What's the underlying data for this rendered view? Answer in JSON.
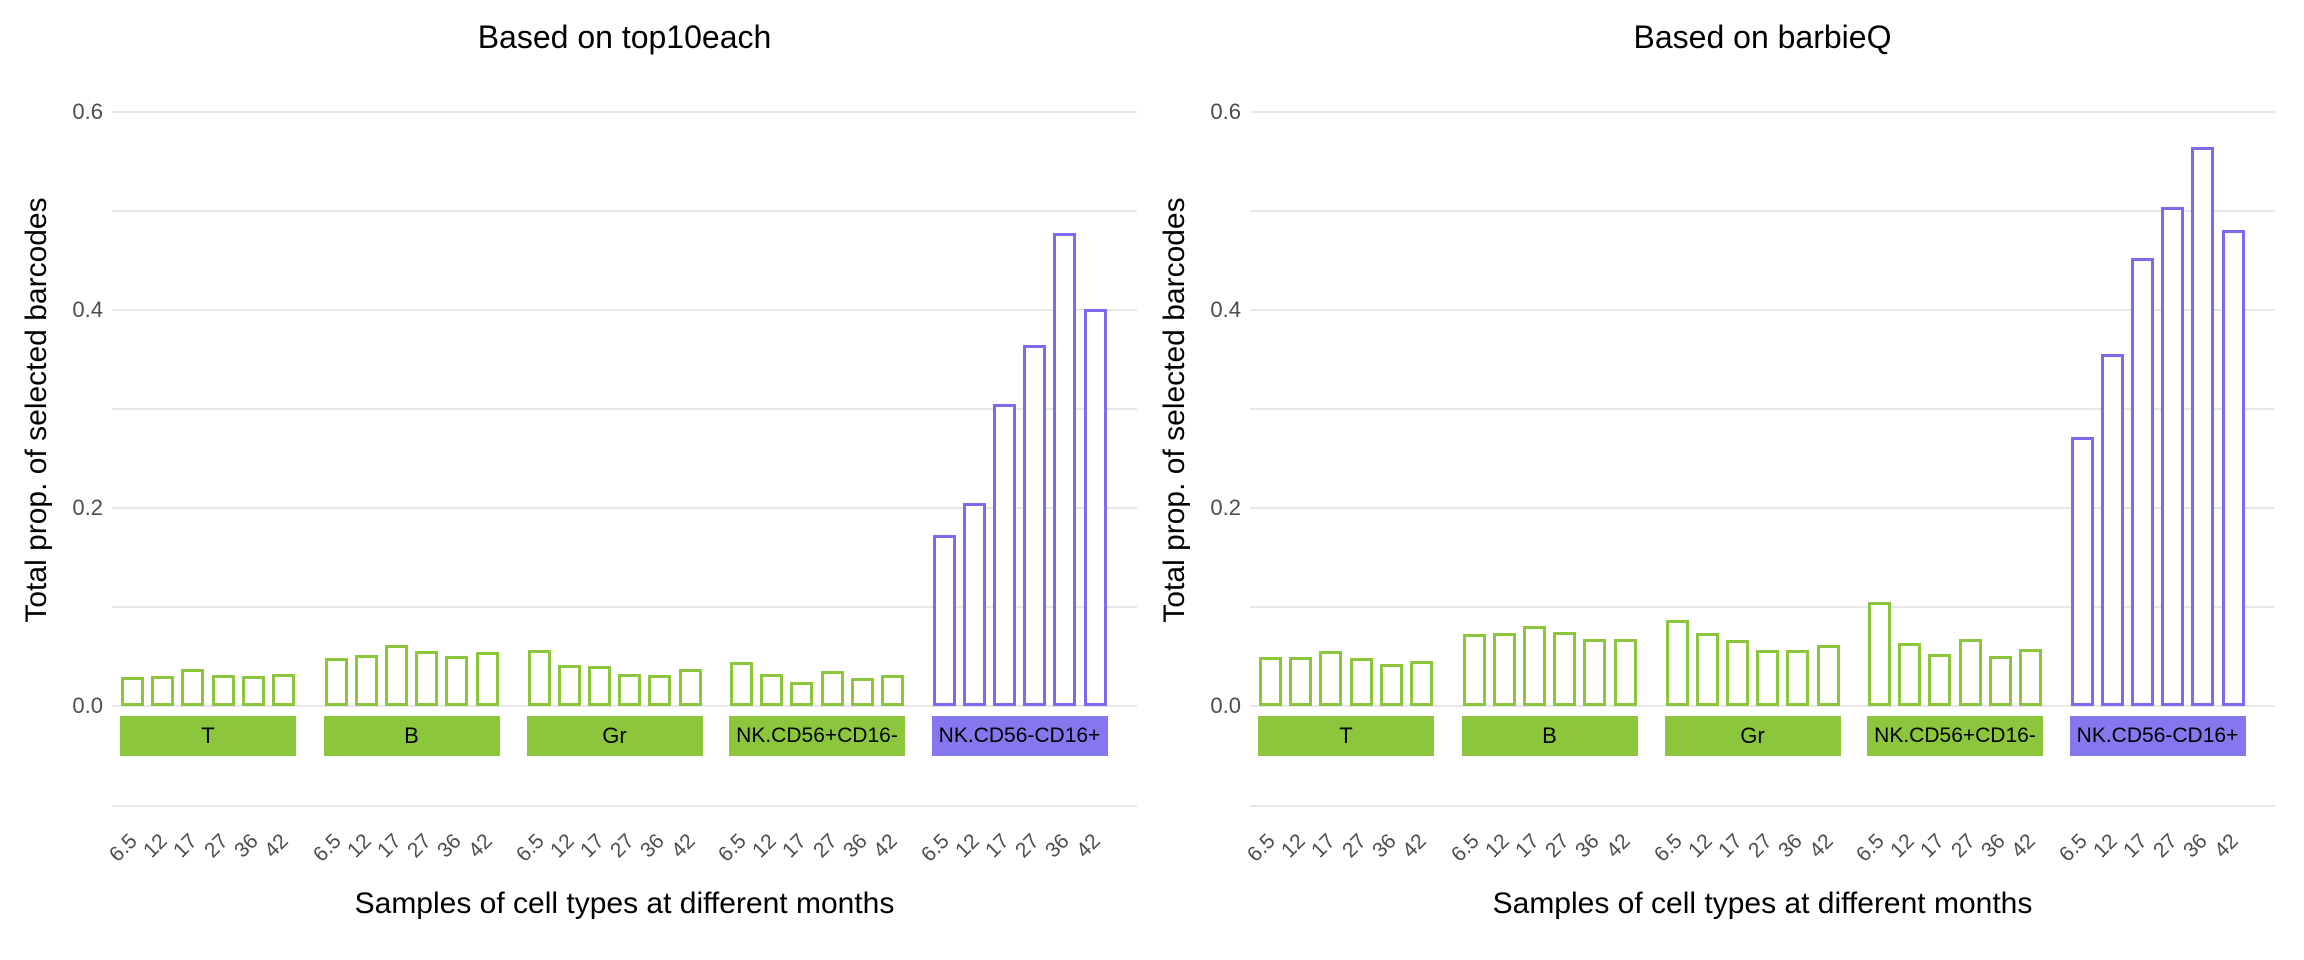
{
  "figure": {
    "background": "#FFFFFF",
    "x_title": "Samples of cell types at different months",
    "y_title": "Total prop. of selected barcodes",
    "y_tick_labels": [
      "0.0",
      "0.2",
      "0.4",
      "0.6"
    ],
    "x_tick_labels": [
      "6.5",
      "12",
      "17",
      "27",
      "36",
      "42"
    ]
  },
  "style": {
    "bar_fill": "#FFFFFF",
    "green_outline": "#8CC63C",
    "purple_outline": "#7C6BEE",
    "green_strip": "#8CC63C",
    "purple_strip": "#8577EE",
    "grid_color": "#E8E8E8",
    "tick_text_color": "#4D4D4D",
    "title_text_color": "#000000"
  },
  "chart_data": [
    {
      "type": "bar",
      "title": "Based on top10each",
      "xlabel": "Samples of cell types at different months",
      "ylabel": "Total prop. of selected barcodes",
      "ylim": [
        0,
        0.62
      ],
      "y_ticks_labeled": [
        0.0,
        0.2,
        0.4,
        0.6
      ],
      "y_grid_step": 0.1,
      "grid": "horizontal only",
      "legend_position": "none",
      "bar_style": "white fill with colored outline",
      "categories_months": [
        "6.5",
        "12",
        "17",
        "27",
        "36",
        "42"
      ],
      "facets": [
        {
          "label": "T",
          "color": "green",
          "values": [
            0.029,
            0.03,
            0.037,
            0.031,
            0.03,
            0.032
          ]
        },
        {
          "label": "B",
          "color": "green",
          "values": [
            0.048,
            0.052,
            0.062,
            0.056,
            0.051,
            0.055
          ]
        },
        {
          "label": "Gr",
          "color": "green",
          "values": [
            0.057,
            0.041,
            0.04,
            0.032,
            0.031,
            0.037
          ]
        },
        {
          "label": "NK.CD56+CD16-",
          "color": "green",
          "values": [
            0.044,
            0.032,
            0.024,
            0.035,
            0.028,
            0.031
          ]
        },
        {
          "label": "NK.CD56-CD16+",
          "color": "purple",
          "values": [
            0.173,
            0.205,
            0.305,
            0.365,
            0.478,
            0.401
          ]
        }
      ]
    },
    {
      "type": "bar",
      "title": "Based on barbieQ",
      "xlabel": "Samples of cell types at different months",
      "ylabel": "Total prop. of selected barcodes",
      "ylim": [
        0,
        0.62
      ],
      "y_ticks_labeled": [
        0.0,
        0.2,
        0.4,
        0.6
      ],
      "y_grid_step": 0.1,
      "grid": "horizontal only",
      "legend_position": "none",
      "bar_style": "white fill with colored outline",
      "categories_months": [
        "6.5",
        "12",
        "17",
        "27",
        "36",
        "42"
      ],
      "facets": [
        {
          "label": "T",
          "color": "green",
          "values": [
            0.049,
            0.049,
            0.056,
            0.048,
            0.042,
            0.045
          ]
        },
        {
          "label": "B",
          "color": "green",
          "values": [
            0.073,
            0.074,
            0.081,
            0.075,
            0.068,
            0.068
          ]
        },
        {
          "label": "Gr",
          "color": "green",
          "values": [
            0.087,
            0.074,
            0.067,
            0.057,
            0.057,
            0.062
          ]
        },
        {
          "label": "NK.CD56+CD16-",
          "color": "green",
          "values": [
            0.105,
            0.064,
            0.053,
            0.068,
            0.05,
            0.058
          ]
        },
        {
          "label": "NK.CD56-CD16+",
          "color": "purple",
          "values": [
            0.272,
            0.356,
            0.453,
            0.504,
            0.565,
            0.481
          ]
        }
      ]
    }
  ]
}
